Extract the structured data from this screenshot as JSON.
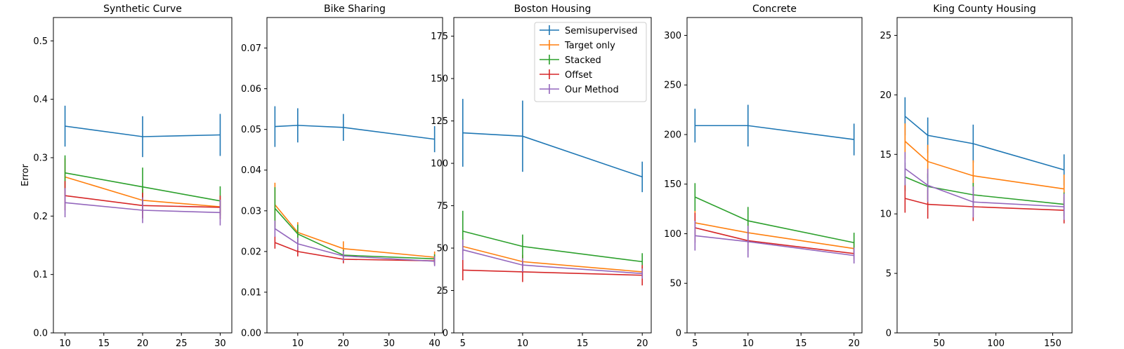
{
  "figure": {
    "ylabel": "Error"
  },
  "chart_data": [
    {
      "type": "line",
      "title": "Synthetic Curve",
      "xlabel": "",
      "ylabel": "Error",
      "xlim": [
        8.5,
        31.5
      ],
      "ylim": [
        0,
        0.54
      ],
      "xticks": [
        10,
        15,
        20,
        25,
        30
      ],
      "yticks": [
        0.0,
        0.1,
        0.2,
        0.3,
        0.4,
        0.5
      ],
      "ytick_decimals": 1,
      "series": [
        {
          "name": "Semisupervised",
          "color": "#1f77b4",
          "x": [
            10,
            20,
            30
          ],
          "y": [
            0.354,
            0.336,
            0.339
          ],
          "err": [
            0.035,
            0.035,
            0.036
          ]
        },
        {
          "name": "Target only",
          "color": "#ff7f0e",
          "x": [
            10,
            20,
            30
          ],
          "y": [
            0.267,
            0.227,
            0.216
          ],
          "err": [
            0.032,
            0.02,
            0.01
          ]
        },
        {
          "name": "Stacked",
          "color": "#2ca02c",
          "x": [
            10,
            20,
            30
          ],
          "y": [
            0.274,
            0.25,
            0.226
          ],
          "err": [
            0.03,
            0.033,
            0.025
          ]
        },
        {
          "name": "Offset",
          "color": "#d62728",
          "x": [
            10,
            20,
            30
          ],
          "y": [
            0.235,
            0.218,
            0.215
          ],
          "err": [
            0.025,
            0.022,
            0.02
          ]
        },
        {
          "name": "Our Method",
          "color": "#9467bd",
          "x": [
            10,
            20,
            30
          ],
          "y": [
            0.223,
            0.21,
            0.206
          ],
          "err": [
            0.025,
            0.022,
            0.022
          ]
        }
      ]
    },
    {
      "type": "line",
      "title": "Bike Sharing",
      "xlabel": "",
      "ylabel": "",
      "xlim": [
        3.25,
        41.75
      ],
      "ylim": [
        0,
        0.0775
      ],
      "xticks": [
        10,
        20,
        30,
        40
      ],
      "yticks": [
        0.0,
        0.01,
        0.02,
        0.03,
        0.04,
        0.05,
        0.06,
        0.07
      ],
      "ytick_decimals": 2,
      "series": [
        {
          "name": "Semisupervised",
          "color": "#1f77b4",
          "x": [
            5,
            10,
            20,
            40
          ],
          "y": [
            0.0507,
            0.051,
            0.0505,
            0.0476
          ],
          "err": [
            0.005,
            0.0042,
            0.0033,
            0.0032
          ]
        },
        {
          "name": "Target only",
          "color": "#ff7f0e",
          "x": [
            5,
            10,
            20,
            40
          ],
          "y": [
            0.0315,
            0.0247,
            0.0207,
            0.0186
          ],
          "err": [
            0.0054,
            0.0025,
            0.0018,
            0.0014
          ]
        },
        {
          "name": "Stacked",
          "color": "#2ca02c",
          "x": [
            5,
            10,
            20,
            40
          ],
          "y": [
            0.0306,
            0.0243,
            0.0191,
            0.0182
          ],
          "err": [
            0.0052,
            0.0023,
            0.0013,
            0.0011
          ]
        },
        {
          "name": "Offset",
          "color": "#d62728",
          "x": [
            5,
            10,
            20,
            40
          ],
          "y": [
            0.0222,
            0.02,
            0.0181,
            0.0177
          ],
          "err": [
            0.0015,
            0.0012,
            0.001,
            0.001
          ]
        },
        {
          "name": "Our Method",
          "color": "#9467bd",
          "x": [
            5,
            10,
            20,
            40
          ],
          "y": [
            0.0256,
            0.0219,
            0.0189,
            0.0176
          ],
          "err": [
            0.002,
            0.0015,
            0.0012,
            0.0012
          ]
        }
      ]
    },
    {
      "type": "line",
      "title": "Boston Housing",
      "xlabel": "",
      "ylabel": "",
      "xlim": [
        4.25,
        20.75
      ],
      "ylim": [
        0,
        186
      ],
      "xticks": [
        5,
        10,
        15,
        20
      ],
      "yticks": [
        0,
        25,
        50,
        75,
        100,
        125,
        150,
        175
      ],
      "ytick_decimals": 0,
      "legend": {
        "placement": "top-right",
        "entries": [
          "Semisupervised",
          "Target only",
          "Stacked",
          "Offset",
          "Our Method"
        ]
      },
      "series": [
        {
          "name": "Semisupervised",
          "color": "#1f77b4",
          "x": [
            5,
            10,
            20
          ],
          "y": [
            118,
            116,
            92
          ],
          "err": [
            20,
            21,
            9
          ]
        },
        {
          "name": "Target only",
          "color": "#ff7f0e",
          "x": [
            5,
            10,
            20
          ],
          "y": [
            51,
            42,
            36
          ],
          "err": [
            5,
            4,
            3
          ]
        },
        {
          "name": "Stacked",
          "color": "#2ca02c",
          "x": [
            5,
            10,
            20
          ],
          "y": [
            60,
            51,
            42
          ],
          "err": [
            12,
            7,
            5
          ]
        },
        {
          "name": "Offset",
          "color": "#d62728",
          "x": [
            5,
            10,
            20
          ],
          "y": [
            37,
            36,
            34
          ],
          "err": [
            6,
            6,
            6
          ]
        },
        {
          "name": "Our Method",
          "color": "#9467bd",
          "x": [
            5,
            10,
            20
          ],
          "y": [
            49,
            40,
            35
          ],
          "err": [
            6,
            4,
            3
          ]
        }
      ]
    },
    {
      "type": "line",
      "title": "Concrete",
      "xlabel": "",
      "ylabel": "",
      "xlim": [
        4.25,
        20.75
      ],
      "ylim": [
        0,
        318
      ],
      "xticks": [
        5,
        10,
        15,
        20
      ],
      "yticks": [
        0,
        50,
        100,
        150,
        200,
        250,
        300
      ],
      "ytick_decimals": 0,
      "series": [
        {
          "name": "Semisupervised",
          "color": "#1f77b4",
          "x": [
            5,
            10,
            20
          ],
          "y": [
            209,
            209,
            195
          ],
          "err": [
            17,
            21,
            16
          ]
        },
        {
          "name": "Target only",
          "color": "#ff7f0e",
          "x": [
            5,
            10,
            20
          ],
          "y": [
            111,
            101,
            85
          ],
          "err": [
            12,
            10,
            7
          ]
        },
        {
          "name": "Stacked",
          "color": "#2ca02c",
          "x": [
            5,
            10,
            20
          ],
          "y": [
            137,
            113,
            91
          ],
          "err": [
            14,
            14,
            10
          ]
        },
        {
          "name": "Offset",
          "color": "#d62728",
          "x": [
            5,
            10,
            20
          ],
          "y": [
            106,
            93,
            80
          ],
          "err": [
            15,
            10,
            6
          ]
        },
        {
          "name": "Our Method",
          "color": "#9467bd",
          "x": [
            5,
            10,
            20
          ],
          "y": [
            98,
            92,
            78
          ],
          "err": [
            15,
            16,
            8
          ]
        }
      ]
    },
    {
      "type": "line",
      "title": "King County Housing",
      "xlabel": "",
      "ylabel": "",
      "xlim": [
        13,
        167
      ],
      "ylim": [
        0,
        26.5
      ],
      "xticks": [
        50,
        100,
        150
      ],
      "yticks": [
        0,
        5,
        10,
        15,
        20,
        25
      ],
      "ytick_decimals": 0,
      "series": [
        {
          "name": "Semisupervised",
          "color": "#1f77b4",
          "x": [
            20,
            40,
            80,
            160
          ],
          "y": [
            18.2,
            16.6,
            15.9,
            13.7
          ],
          "err": [
            1.6,
            1.5,
            1.6,
            1.3
          ]
        },
        {
          "name": "Target only",
          "color": "#ff7f0e",
          "x": [
            20,
            40,
            80,
            160
          ],
          "y": [
            16.1,
            14.4,
            13.2,
            12.1
          ],
          "err": [
            1.5,
            1.4,
            1.3,
            1.2
          ]
        },
        {
          "name": "Stacked",
          "color": "#2ca02c",
          "x": [
            20,
            40,
            80,
            160
          ],
          "y": [
            13.1,
            12.3,
            11.6,
            10.8
          ],
          "err": [
            1.2,
            1.1,
            1.0,
            1.0
          ]
        },
        {
          "name": "Offset",
          "color": "#d62728",
          "x": [
            20,
            40,
            80,
            160
          ],
          "y": [
            11.3,
            10.8,
            10.6,
            10.3
          ],
          "err": [
            1.2,
            1.2,
            1.2,
            1.1
          ]
        },
        {
          "name": "Our Method",
          "color": "#9467bd",
          "x": [
            20,
            40,
            80,
            160
          ],
          "y": [
            13.8,
            12.4,
            11.0,
            10.6
          ],
          "err": [
            1.4,
            1.4,
            1.3,
            1.1
          ]
        }
      ]
    }
  ]
}
